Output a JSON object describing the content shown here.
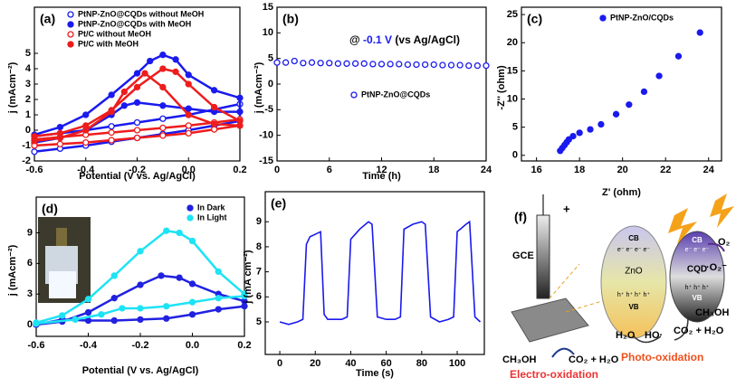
{
  "chart_data": [
    {
      "type": "scatter",
      "panel": "(a)",
      "xlabel": "Potential (V vs. Ag/AgCl)",
      "ylabel": "j (mAcm⁻²)",
      "xlim": [
        -0.6,
        0.2
      ],
      "xticks": [
        -0.6,
        -0.4,
        -0.2,
        {
          "value": 0,
          "label": "0.0"
        },
        0.2
      ],
      "ylim": [
        -2,
        8
      ],
      "yticks": [
        -2,
        -1,
        0,
        1,
        2,
        3,
        4,
        5
      ],
      "legend": "upper left",
      "connect": true,
      "series": [
        {
          "name": "PtNP-ZnO@CQDs without MeOH",
          "color": "#1a1aee",
          "marker": "open",
          "x": [
            -0.6,
            -0.5,
            -0.4,
            -0.3,
            -0.2,
            -0.1,
            0,
            0.1,
            0.2,
            0.2,
            0.1,
            0,
            -0.1,
            -0.2,
            -0.3,
            -0.4,
            -0.5,
            -0.6
          ],
          "values": [
            -0.4,
            -0.2,
            0,
            0.25,
            0.5,
            0.75,
            1.0,
            1.35,
            1.7,
            0.6,
            0.3,
            0,
            -0.25,
            -0.5,
            -0.75,
            -1.0,
            -1.2,
            -1.4
          ]
        },
        {
          "name": "PtNP-ZnO@CQDs with MeOH",
          "color": "#1a1aee",
          "marker": "filled",
          "x": [
            -0.6,
            -0.5,
            -0.4,
            -0.3,
            -0.2,
            -0.15,
            -0.1,
            -0.05,
            0,
            0.1,
            0.2,
            0.2,
            0.1,
            0,
            -0.1,
            -0.2,
            -0.25,
            -0.3,
            -0.4,
            -0.5,
            -0.6
          ],
          "values": [
            -0.3,
            0.2,
            1.0,
            2.3,
            3.7,
            4.5,
            4.9,
            4.6,
            3.6,
            2.6,
            2.1,
            1.2,
            1.2,
            1.4,
            1.6,
            1.8,
            1.6,
            1.0,
            0,
            -0.5,
            -0.8
          ]
        },
        {
          "name": "Pt/C without MeOH",
          "color": "#ee1c1c",
          "marker": "open",
          "x": [
            -0.6,
            -0.5,
            -0.4,
            -0.3,
            -0.2,
            -0.1,
            0,
            0.1,
            0.2,
            0.2,
            0.1,
            0,
            -0.1,
            -0.2,
            -0.3,
            -0.4,
            -0.5,
            -0.6
          ],
          "values": [
            -0.6,
            -0.45,
            -0.3,
            -0.15,
            0,
            0.15,
            0.3,
            0.5,
            0.7,
            0.3,
            0.05,
            -0.2,
            -0.35,
            -0.5,
            -0.65,
            -0.8,
            -0.9,
            -1.0
          ]
        },
        {
          "name": "Pt/C with MeOH",
          "color": "#ee1c1c",
          "marker": "filled",
          "x": [
            -0.6,
            -0.5,
            -0.4,
            -0.3,
            -0.2,
            -0.1,
            -0.05,
            0,
            0.1,
            0.2,
            0.2,
            0.1,
            0,
            -0.1,
            -0.17,
            -0.25,
            -0.3,
            -0.4,
            -0.5,
            -0.6
          ],
          "values": [
            -0.4,
            -0.2,
            0.3,
            1.3,
            2.8,
            4.0,
            3.8,
            3.0,
            1.5,
            0.6,
            0.3,
            0.4,
            1.0,
            2.8,
            3.7,
            2.5,
            1.2,
            0,
            -0.5,
            -0.7
          ]
        }
      ]
    },
    {
      "type": "scatter",
      "panel": "(b)",
      "xlabel": "Time (h)",
      "ylabel": "j (mAcm⁻²)",
      "xlim": [
        0,
        24
      ],
      "xticks": [
        0,
        6,
        12,
        18,
        24
      ],
      "ylim": [
        -15,
        15
      ],
      "yticks": [
        -15,
        -10,
        -5,
        0,
        5,
        10,
        15
      ],
      "legend": "center right",
      "annotation": [
        "@",
        "-0.1 V",
        "(vs Ag/AgCl)"
      ],
      "annotation_color": "#1a1aee",
      "series": [
        {
          "name": "PtNP-ZnO@CQDs",
          "color": "#1a1aee",
          "marker": "open",
          "x": [
            0,
            1,
            2,
            3,
            4,
            5,
            6,
            7,
            8,
            9,
            10,
            11,
            12,
            13,
            14,
            15,
            16,
            17,
            18,
            19,
            20,
            21,
            22,
            23,
            24
          ],
          "values": [
            4.2,
            4.2,
            4.5,
            4.1,
            4.2,
            4.1,
            4.1,
            4.0,
            4.0,
            4.0,
            4.0,
            3.9,
            3.9,
            3.9,
            3.9,
            3.8,
            3.8,
            3.8,
            3.8,
            3.7,
            3.7,
            3.7,
            3.6,
            3.6,
            3.6
          ]
        }
      ]
    },
    {
      "type": "scatter",
      "panel": "(c)",
      "xlabel": "Z' (ohm)",
      "ylabel": "-Z'' (ohm)",
      "xlim": [
        15.3,
        24.6
      ],
      "xticks": [
        16,
        18,
        20,
        22,
        24
      ],
      "ylim": [
        -1,
        26.3
      ],
      "yticks": [
        0,
        5,
        10,
        15,
        20,
        25
      ],
      "legend": "upper center",
      "series": [
        {
          "name": "PtNP-ZnO/CQDs",
          "color": "#1a1aee",
          "marker": "filled",
          "x": [
            17.1,
            17.2,
            17.3,
            17.4,
            17.5,
            17.7,
            18.0,
            18.5,
            19.0,
            19.7,
            20.3,
            21.0,
            21.7,
            22.6,
            23.6
          ],
          "values": [
            0.8,
            1.3,
            1.8,
            2.3,
            2.8,
            3.4,
            4.0,
            4.6,
            5.5,
            7.3,
            9.0,
            11.3,
            14.1,
            17.6,
            21.8
          ]
        }
      ]
    },
    {
      "type": "scatter",
      "panel": "(d)",
      "xlabel": "Potential (V vs. Ag/AgCl)",
      "ylabel": "j (mAcm⁻²)",
      "xlim": [
        -0.6,
        0.2
      ],
      "xticks": [
        -0.6,
        -0.4,
        -0.2,
        {
          "value": 0,
          "label": "0.0"
        },
        0.2
      ],
      "ylim": [
        -1.15,
        12.5
      ],
      "yticks": [
        0,
        3,
        6,
        9
      ],
      "legend": "upper right",
      "connect": true,
      "series": [
        {
          "name": "In Dark",
          "color": "#2121e0",
          "marker": "filled",
          "x": [
            -0.6,
            -0.5,
            -0.4,
            -0.3,
            -0.2,
            -0.12,
            -0.05,
            0,
            0.1,
            0.2,
            0.2,
            0.1,
            0,
            -0.1,
            -0.2,
            -0.3,
            -0.4,
            -0.5,
            -0.6
          ],
          "values": [
            0,
            0.3,
            1.2,
            2.6,
            3.9,
            4.8,
            4.6,
            4.0,
            3.0,
            2.3,
            1.8,
            1.5,
            1.0,
            0.6,
            0.5,
            0.4,
            0.4,
            0.5,
            0
          ]
        },
        {
          "name": "In Light",
          "color": "#1ee3f5",
          "marker": "filled",
          "x": [
            -0.6,
            -0.5,
            -0.4,
            -0.3,
            -0.2,
            -0.1,
            -0.05,
            0,
            0.1,
            0.2,
            0.2,
            0.1,
            0,
            -0.1,
            -0.2,
            -0.27,
            -0.35,
            -0.45,
            -0.6
          ],
          "values": [
            0.2,
            0.9,
            2.5,
            4.8,
            7.2,
            9.2,
            9.0,
            8.2,
            5.2,
            3.0,
            2.8,
            2.6,
            2.2,
            1.8,
            1.6,
            1.6,
            1.0,
            0.5,
            0.1
          ]
        }
      ]
    },
    {
      "type": "line",
      "panel": "(e)",
      "xlabel": "Time (s)",
      "ylabel": "j (mA cm⁻²)",
      "xlim": [
        -8.2,
        115.3
      ],
      "xticks": [
        0,
        20,
        40,
        60,
        80,
        100
      ],
      "ylim": [
        3.7,
        10.2
      ],
      "yticks": [
        5,
        6,
        7,
        8,
        9
      ],
      "series": [
        {
          "color": "#1a1aee",
          "x": [
            0,
            5,
            10,
            13,
            15,
            17,
            20,
            23,
            25,
            27,
            30,
            35,
            38,
            40,
            45,
            50,
            52,
            55,
            60,
            65,
            68,
            70,
            75,
            80,
            82,
            85,
            90,
            95,
            98,
            100,
            105,
            107,
            110,
            113
          ],
          "values": [
            5.0,
            4.9,
            5.0,
            5.1,
            8.1,
            8.4,
            8.5,
            8.6,
            5.3,
            5.1,
            5.1,
            5.1,
            5.2,
            8.3,
            8.7,
            9.0,
            8.9,
            5.2,
            5.1,
            5.1,
            5.2,
            8.7,
            8.9,
            9.0,
            8.9,
            5.2,
            5.0,
            5.1,
            5.2,
            8.6,
            8.9,
            9.0,
            5.2,
            5.0
          ]
        }
      ]
    }
  ],
  "diagram": {
    "panel": "(f)",
    "electrode": "GCE",
    "polarity": "+",
    "electro": {
      "reactant": "CH₃OH",
      "product": "CO₂ + H₂O",
      "label": "Electro-oxidation"
    },
    "zno": {
      "cb": "CB",
      "electrons": "e⁻ e⁻ e⁻ e⁻",
      "name": "ZnO",
      "holes": "h⁺ h⁺ h⁺ h⁺",
      "vb": "VB"
    },
    "cqd": {
      "cb": "CB",
      "electrons": "e⁻ e⁻ e⁻",
      "name": "CQD",
      "holes": "h⁺ h⁺ h⁺",
      "vb": "VB"
    },
    "photo": {
      "oxygen": "O₂",
      "superoxide": "·O₂⁻",
      "water": "H₂O",
      "hydroxyl": "HO·",
      "reactant": "CH₃OH",
      "product": "CO₂ + H₂O",
      "label": "Photo-oxidation"
    }
  }
}
